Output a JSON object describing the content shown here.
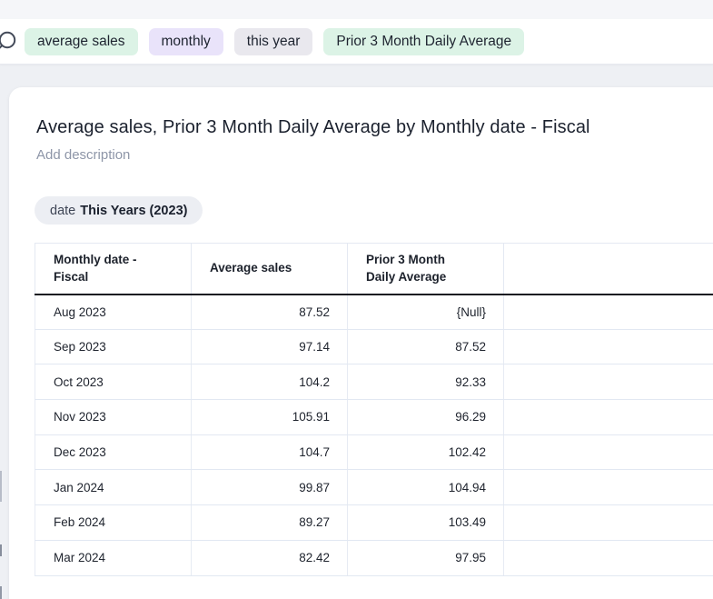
{
  "search": {
    "tokens": [
      {
        "label": "average sales",
        "kind": "measure",
        "bg": "#dcf3e6"
      },
      {
        "label": "monthly",
        "kind": "keyword",
        "bg": "#e9e3fa"
      },
      {
        "label": "this year",
        "kind": "keyword",
        "bg": "#e9e8ee"
      },
      {
        "label": "Prior 3 Month Daily Average",
        "kind": "measure",
        "bg": "#dcf3e6"
      }
    ]
  },
  "answer": {
    "title": "Average sales, Prior 3 Month Daily Average by Monthly date - Fiscal",
    "description_placeholder": "Add description",
    "filter": {
      "field": "date",
      "value": "This Years (2023)"
    }
  },
  "table": {
    "columns": [
      "Monthly date - Fiscal",
      "Average sales",
      "Prior 3 Month Daily Average"
    ],
    "rows": [
      {
        "month": "Aug 2023",
        "average_sales": "87.52",
        "prior_3_month_daily_average": "{Null}"
      },
      {
        "month": "Sep 2023",
        "average_sales": "97.14",
        "prior_3_month_daily_average": "87.52"
      },
      {
        "month": "Oct 2023",
        "average_sales": "104.2",
        "prior_3_month_daily_average": "92.33"
      },
      {
        "month": "Nov 2023",
        "average_sales": "105.91",
        "prior_3_month_daily_average": "96.29"
      },
      {
        "month": "Dec 2023",
        "average_sales": "104.7",
        "prior_3_month_daily_average": "102.42"
      },
      {
        "month": "Jan 2024",
        "average_sales": "99.87",
        "prior_3_month_daily_average": "104.94"
      },
      {
        "month": "Feb 2024",
        "average_sales": "89.27",
        "prior_3_month_daily_average": "103.49"
      },
      {
        "month": "Mar 2024",
        "average_sales": "82.42",
        "prior_3_month_daily_average": "97.95"
      }
    ]
  },
  "colors": {
    "token_measure_bg": "#dcf3e6",
    "token_keyword_bg": "#e9e3fa",
    "token_time_bg": "#e9e8ee",
    "filter_chip_bg": "#eceef3",
    "header_rule": "#171a21",
    "grid_line": "#e2e8f2",
    "page_bg": "#eef0f4"
  }
}
